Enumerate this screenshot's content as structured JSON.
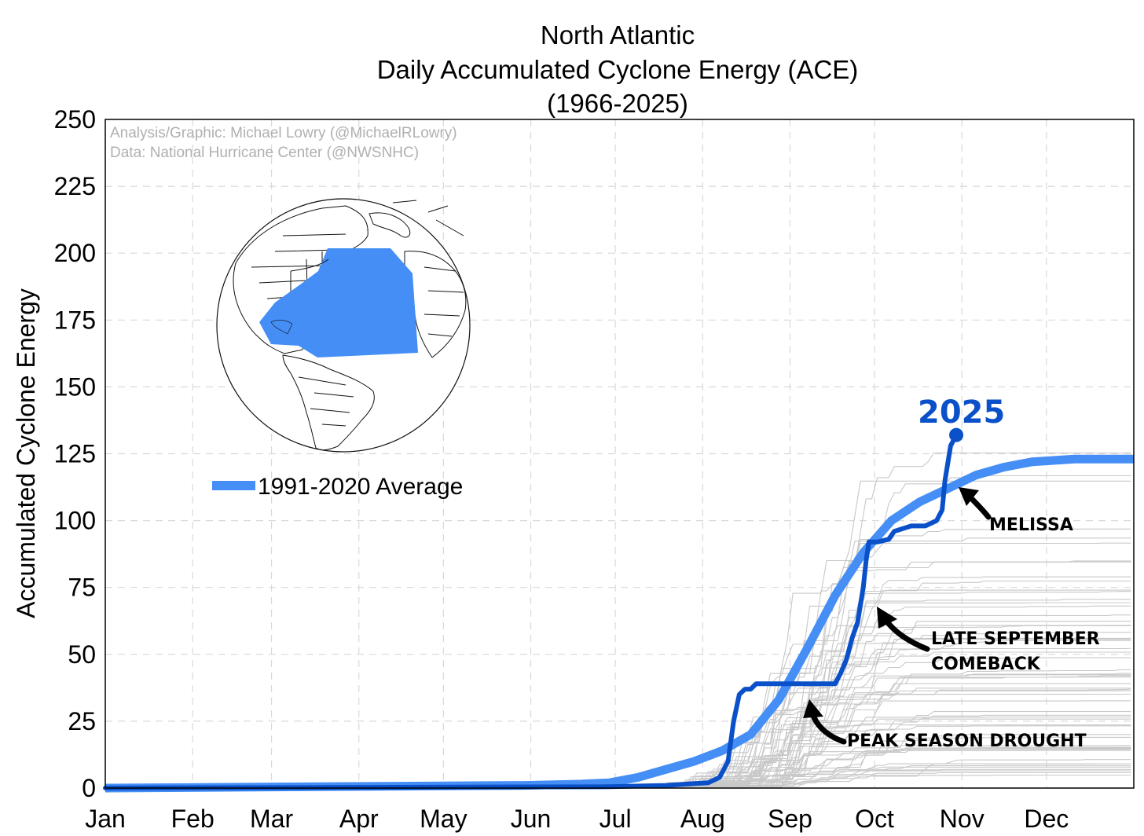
{
  "chart_data": {
    "type": "line",
    "title": [
      "North Atlantic",
      "Daily Accumulated Cyclone Energy (ACE)",
      "(1966-2025)"
    ],
    "ylabel": "Accumulated Cyclone Energy",
    "xlabel": "",
    "ylim": [
      0,
      250
    ],
    "y_ticks": [
      0,
      25,
      50,
      75,
      100,
      125,
      150,
      175,
      200,
      225,
      250
    ],
    "x_range_day": [
      1,
      366
    ],
    "x_ticks": [
      {
        "label": "Jan",
        "day": 1
      },
      {
        "label": "Feb",
        "day": 32
      },
      {
        "label": "Mar",
        "day": 60
      },
      {
        "label": "Apr",
        "day": 91
      },
      {
        "label": "May",
        "day": 121
      },
      {
        "label": "Jun",
        "day": 152
      },
      {
        "label": "Jul",
        "day": 182
      },
      {
        "label": "Aug",
        "day": 213
      },
      {
        "label": "Sep",
        "day": 244
      },
      {
        "label": "Oct",
        "day": 274
      },
      {
        "label": "Nov",
        "day": 305
      },
      {
        "label": "Dec",
        "day": 335
      }
    ],
    "grid": true,
    "credits": [
      "Analysis/Graphic: Michael Lowry (@MichaelRLowry)",
      "Data: National Hurricane Center (@NWSNHC)"
    ],
    "legend": {
      "position": "left-middle",
      "entries": [
        {
          "label": "1991-2020 Average",
          "color": "#448ef6"
        }
      ]
    },
    "colors": {
      "average": "#448ef6",
      "year_2025": "#0a50c8",
      "history": "#c8c8c8",
      "inset_basin": "#448ef6"
    },
    "series": [
      {
        "name": "1991-2020 Average",
        "x": [
          1,
          150,
          170,
          180,
          190,
          200,
          210,
          220,
          230,
          240,
          250,
          260,
          270,
          280,
          290,
          300,
          310,
          320,
          330,
          345,
          366
        ],
        "y": [
          0,
          1,
          1.5,
          2,
          4,
          7,
          10,
          14,
          20,
          33,
          52,
          72,
          88,
          100,
          107,
          112,
          117,
          120,
          122,
          123,
          123
        ]
      },
      {
        "name": "2025",
        "x": [
          1,
          180,
          200,
          215,
          219,
          222,
          224,
          226,
          228,
          230,
          232,
          234,
          260,
          262,
          264,
          266,
          268,
          270,
          271,
          272,
          275,
          279,
          281,
          284,
          287,
          290,
          292,
          296,
          298,
          299,
          301,
          303
        ],
        "y": [
          0,
          0.5,
          1,
          2,
          4,
          10,
          25,
          35,
          37,
          37,
          39,
          39,
          39,
          43,
          48,
          56,
          62,
          75,
          85,
          92,
          92,
          93,
          96,
          97,
          98,
          98,
          98,
          100,
          104,
          115,
          128,
          132
        ]
      }
    ],
    "historical_seasons_count": 59,
    "annotations": [
      {
        "text": "2025",
        "target_day": 303,
        "target_value": 132
      },
      {
        "text": "MELISSA",
        "target_day": 298,
        "target_value": 110
      },
      {
        "text": "LATE SEPTEMBER",
        "target_day": 271,
        "target_value": 70
      },
      {
        "text": "COMEBACK",
        "target_day": 271,
        "target_value": 70
      },
      {
        "text": "PEAK SEASON DROUGHT",
        "target_day": 254,
        "target_value": 30
      }
    ],
    "inset": {
      "kind": "orthographic globe map",
      "highlight": "North Atlantic basin"
    }
  }
}
